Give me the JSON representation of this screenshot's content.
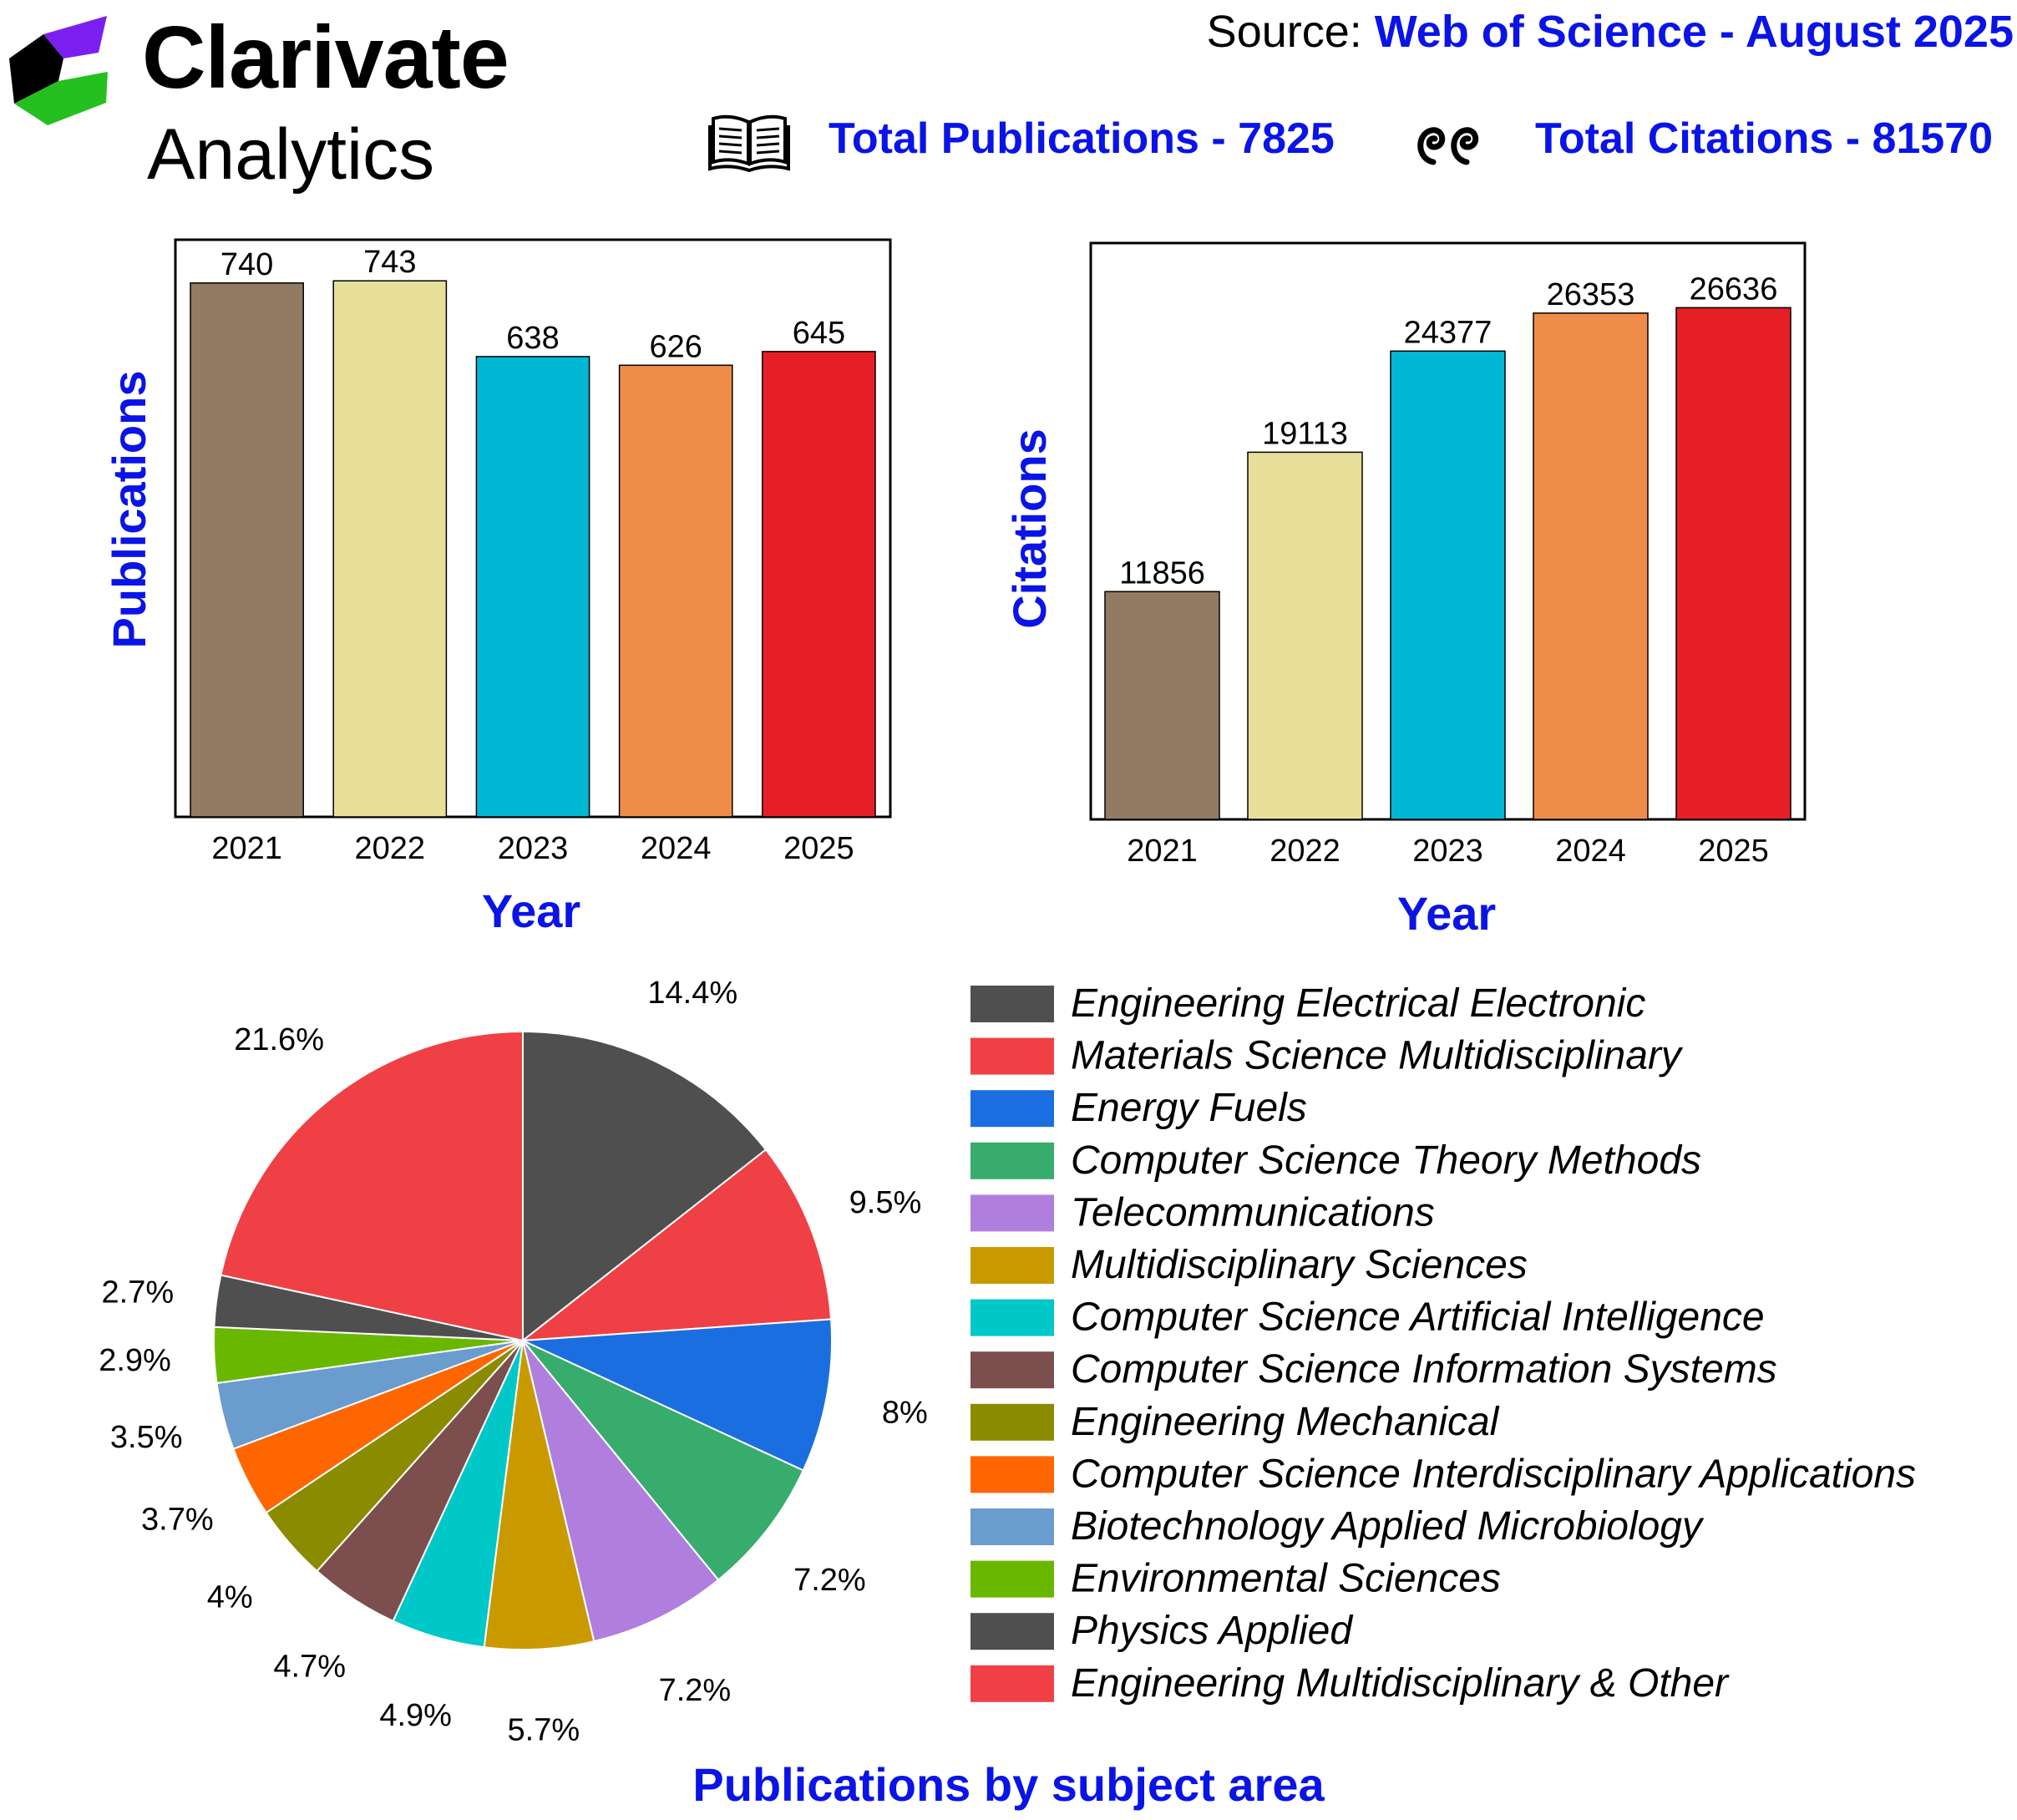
{
  "header": {
    "brand_line1": "Clarivate",
    "brand_line2": "Analytics",
    "source_label": "Source:",
    "source_value": "Web of Science - August 2025",
    "total_publications": "Total Publications - 7825",
    "total_citations": "Total Citations - 81570",
    "icons": [
      "open-book-icon",
      "quotation-marks-icon"
    ]
  },
  "colors": {
    "accent_blue": "#0a14e6",
    "bars": [
      "#937a62",
      "#e8df9b",
      "#00b8d4",
      "#ef8c4a",
      "#e61f27"
    ]
  },
  "chart_data": [
    {
      "type": "bar",
      "categories": [
        "2021",
        "2022",
        "2023",
        "2024",
        "2025"
      ],
      "values": [
        740,
        743,
        638,
        626,
        645
      ],
      "xlabel": "Year",
      "ylabel": "Publications",
      "ylim": [
        0,
        800
      ]
    },
    {
      "type": "bar",
      "categories": [
        "2021",
        "2022",
        "2023",
        "2024",
        "2025"
      ],
      "values": [
        11856,
        19113,
        24377,
        26353,
        26636
      ],
      "xlabel": "Year",
      "ylabel": "Citations",
      "ylim": [
        0,
        30000
      ]
    },
    {
      "type": "pie",
      "title": "Publications by subject area",
      "labels": [
        "Engineering Electrical Electronic",
        "Materials Science Multidisciplinary",
        "Energy Fuels",
        "Computer Science Theory Methods",
        "Telecommunications",
        "Multidisciplinary Sciences",
        "Computer Science Artificial Intelligence",
        "Computer Science Information Systems",
        "Engineering Mechanical",
        "Computer Science Interdisciplinary Applications",
        "Biotechnology Applied Microbiology",
        "Environmental Sciences",
        "Physics Applied",
        "Engineering Multidisciplinary & Other"
      ],
      "values": [
        14.4,
        9.5,
        8,
        7.2,
        7.2,
        5.7,
        4.9,
        4.7,
        4,
        3.7,
        3.5,
        2.9,
        2.7,
        21.6
      ],
      "value_labels": [
        "14.4%",
        "9.5%",
        "8%",
        "7.2%",
        "7.2%",
        "5.7%",
        "4.9%",
        "4.7%",
        "4%",
        "3.7%",
        "3.5%",
        "2.9%",
        "2.7%",
        "21.6%"
      ],
      "colors": [
        "#4f4f4f",
        "#ef4145",
        "#1b6edf",
        "#38ac6c",
        "#b07fdd",
        "#c99a00",
        "#00c8c8",
        "#7c4e4e",
        "#8b8b00",
        "#ff6600",
        "#6a9cce",
        "#6ab700",
        "#4f4f4f",
        "#ef4145"
      ],
      "legend": "right"
    }
  ]
}
